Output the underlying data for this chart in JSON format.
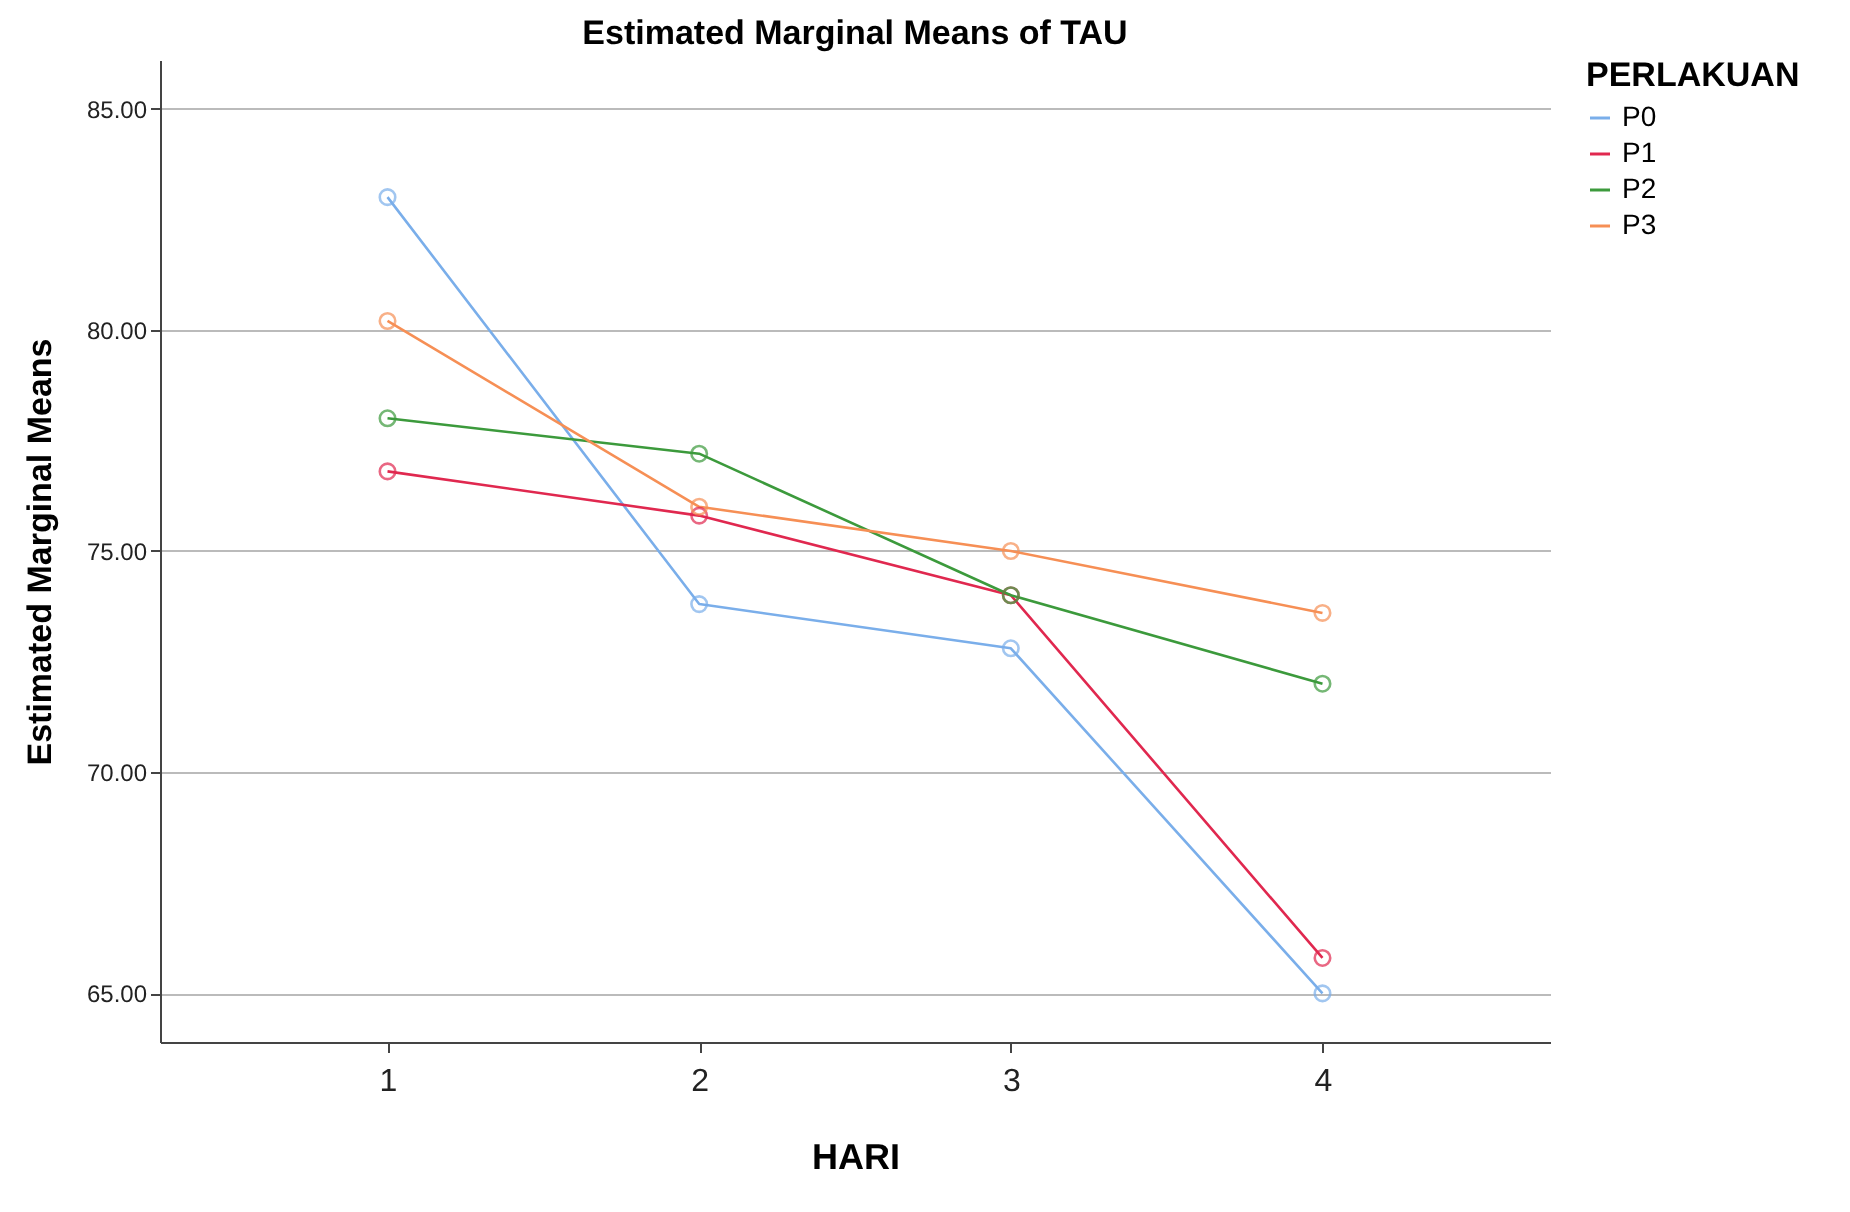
{
  "chart_data": {
    "type": "line",
    "title": "Estimated Marginal Means of TAU",
    "xlabel": "HARI",
    "ylabel": "Estimated Marginal Means",
    "legend_title": "PERLAKUAN",
    "categories": [
      "1",
      "2",
      "3",
      "4"
    ],
    "series": [
      {
        "name": "P0",
        "color": "#7aaeea",
        "values": [
          83.0,
          73.8,
          72.8,
          65.0
        ]
      },
      {
        "name": "P1",
        "color": "#e0284f",
        "values": [
          76.8,
          75.8,
          74.0,
          65.8
        ]
      },
      {
        "name": "P2",
        "color": "#3c9a3c",
        "values": [
          78.0,
          77.2,
          74.0,
          72.0
        ]
      },
      {
        "name": "P3",
        "color": "#f68f55",
        "values": [
          80.2,
          76.0,
          75.0,
          73.6
        ]
      }
    ],
    "ylim": [
      63.9,
      86.1
    ],
    "yticks": [
      {
        "value": 65,
        "label": "65.00"
      },
      {
        "value": 70,
        "label": "70.00"
      },
      {
        "value": 75,
        "label": "75.00"
      },
      {
        "value": 80,
        "label": "80.00"
      },
      {
        "value": 85,
        "label": "85.00"
      }
    ],
    "grid": "y",
    "legend": "top right",
    "marker": "circle",
    "line_style": "solid"
  }
}
